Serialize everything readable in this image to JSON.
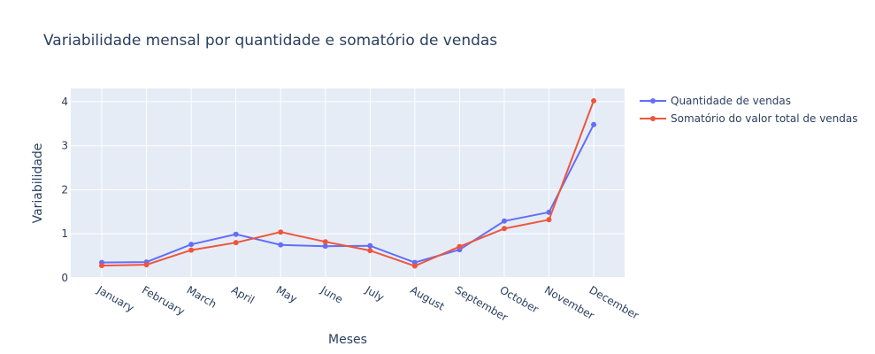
{
  "chart_data": {
    "type": "line",
    "title": "Variabilidade mensal por quantidade e somatório de vendas",
    "xlabel": "Meses",
    "ylabel": "Variabilidade",
    "categories": [
      "January",
      "February",
      "March",
      "April",
      "May",
      "June",
      "July",
      "August",
      "September",
      "October",
      "November",
      "December"
    ],
    "ylim": [
      0,
      4.3
    ],
    "yticks": [
      0,
      1,
      2,
      3,
      4
    ],
    "grid": true,
    "legend_position": "top-right",
    "series": [
      {
        "name": "Quantidade de vendas",
        "color": "#636efa",
        "values": [
          0.35,
          0.36,
          0.76,
          0.99,
          0.75,
          0.72,
          0.73,
          0.35,
          0.64,
          1.29,
          1.49,
          3.48
        ]
      },
      {
        "name": "Somatório do valor total de vendas",
        "color": "#ef553b",
        "values": [
          0.28,
          0.3,
          0.63,
          0.8,
          1.04,
          0.82,
          0.62,
          0.27,
          0.71,
          1.12,
          1.32,
          4.02
        ]
      }
    ]
  }
}
